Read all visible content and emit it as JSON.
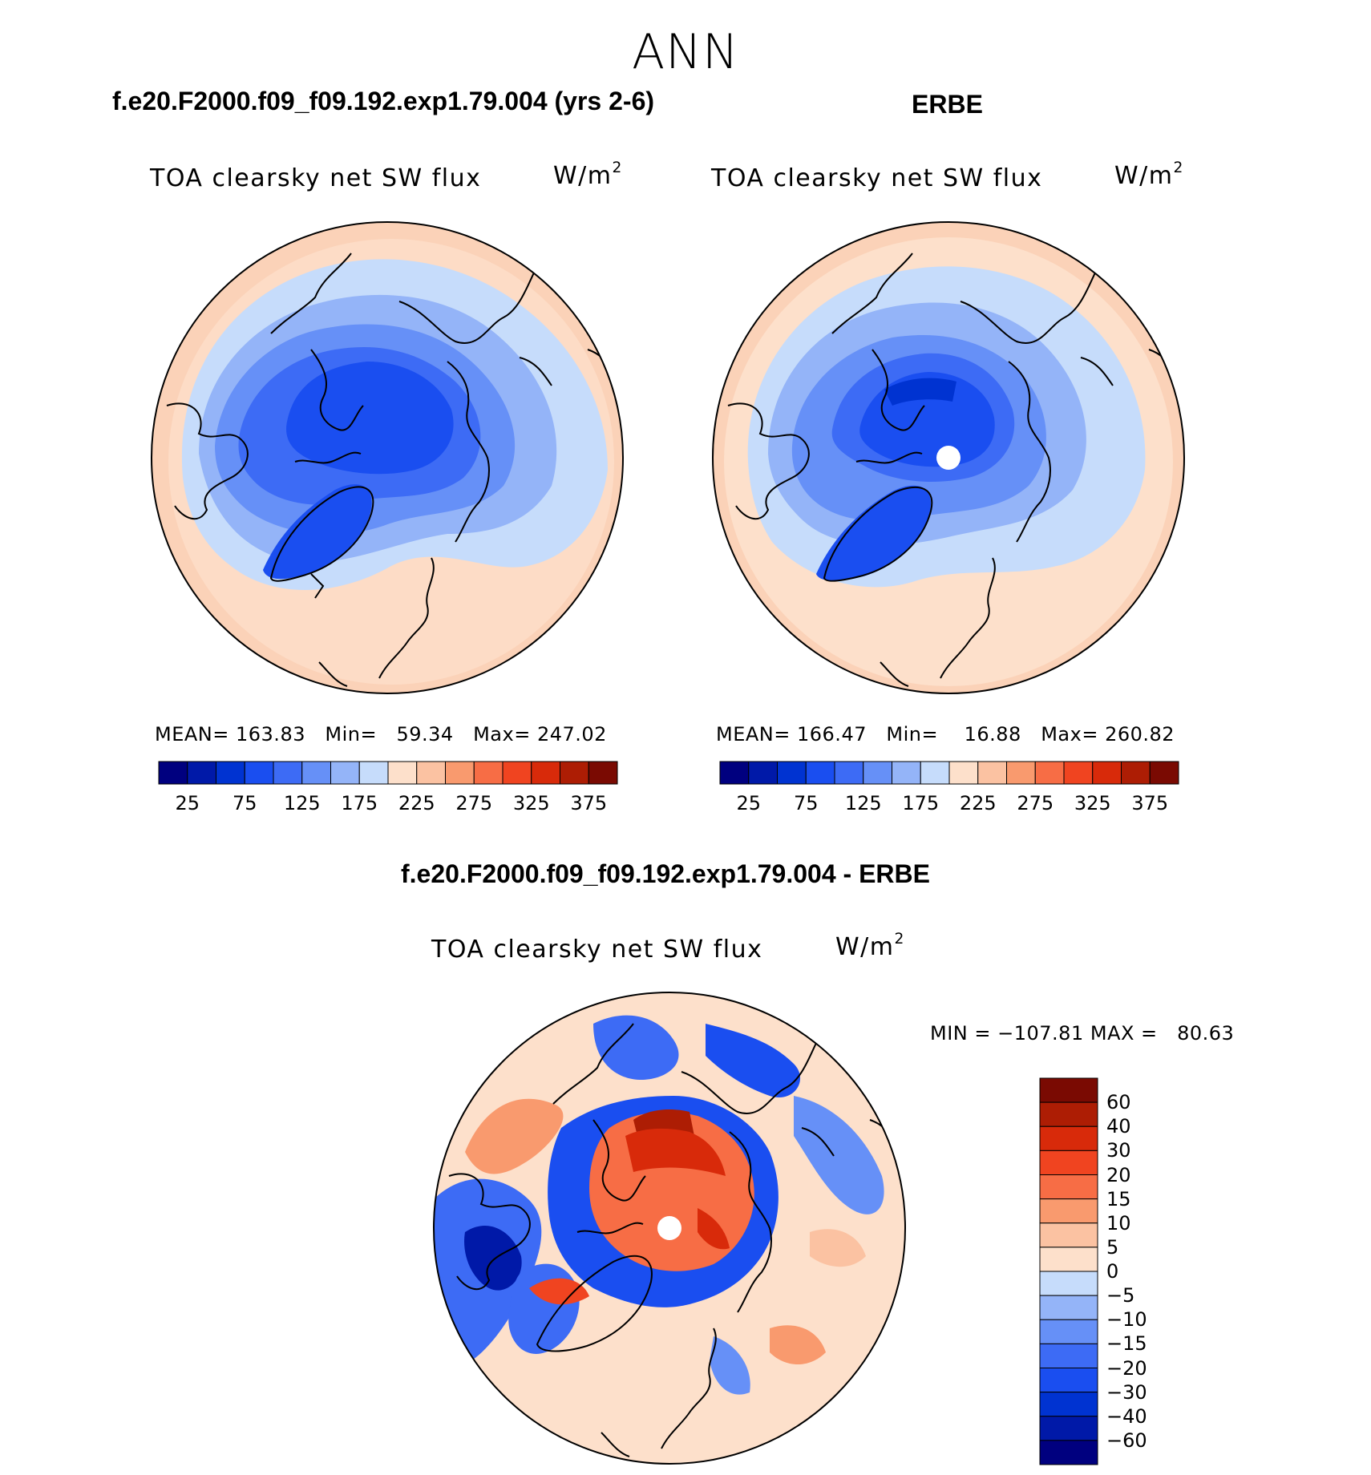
{
  "figure": {
    "season": "ANN"
  },
  "panels": [
    {
      "id": "model",
      "title": "f.e20.F2000.f09_f09.192.exp1.79.004 (yrs 2-6)",
      "field": "TOA clearsky net SW flux",
      "units_base": "W/m",
      "units_exp": "2",
      "stats": {
        "mean_label": "MEAN=",
        "mean": "163.83",
        "min_label": "Min=",
        "min": "59.34",
        "max_label": "Max=",
        "max": "247.02"
      }
    },
    {
      "id": "obs",
      "title": "ERBE",
      "field": "TOA clearsky net SW flux",
      "units_base": "W/m",
      "units_exp": "2",
      "stats": {
        "mean_label": "MEAN=",
        "mean": "166.47",
        "min_label": "Min=",
        "min": "16.88",
        "max_label": "Max=",
        "max": "260.82"
      }
    },
    {
      "id": "diff",
      "title": "f.e20.F2000.f09_f09.192.exp1.79.004 - ERBE",
      "field": "TOA clearsky net SW flux",
      "units_base": "W/m",
      "units_exp": "2",
      "stats": {
        "min_label": "MIN =",
        "min": "−107.81",
        "max_label": "MAX =",
        "max": "80.63"
      }
    }
  ],
  "colorbar_abs": {
    "colors": [
      "#00007f",
      "#0019a8",
      "#0033d1",
      "#1a4ef0",
      "#3d6bf5",
      "#6690f7",
      "#94b4f8",
      "#c6dcfb",
      "#fde0cb",
      "#fbc2a2",
      "#f99a6e",
      "#f76d45",
      "#f04420",
      "#d82a0a",
      "#ad1d04",
      "#7a0a02"
    ],
    "labels": [
      "25",
      "75",
      "125",
      "175",
      "225",
      "275",
      "325",
      "375"
    ]
  },
  "colorbar_diff": {
    "colors": [
      "#7a0a02",
      "#ad1d04",
      "#d82a0a",
      "#f04420",
      "#f76d45",
      "#f99a6e",
      "#fbc2a2",
      "#fde0cb",
      "#c6dcfb",
      "#94b4f8",
      "#6690f7",
      "#3d6bf5",
      "#1a4ef0",
      "#0033d1",
      "#0019a8",
      "#00007f"
    ],
    "labels": [
      "60",
      "40",
      "30",
      "20",
      "15",
      "10",
      "5",
      "0",
      "−5",
      "−10",
      "−15",
      "−20",
      "−30",
      "−40",
      "−60"
    ]
  }
}
